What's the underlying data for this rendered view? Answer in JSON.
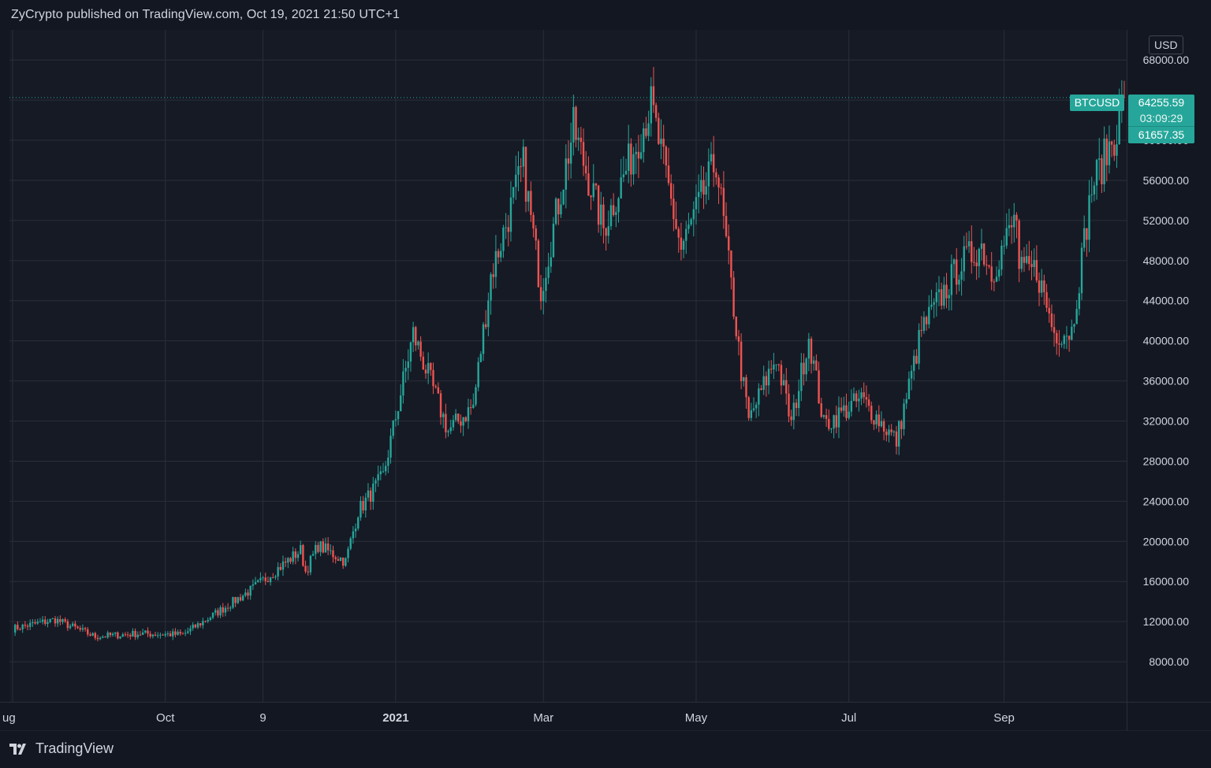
{
  "header": {
    "publisher": "ZyCrypto published on TradingView.com, Oct 19, 2021 21:50 UTC+1"
  },
  "footer": {
    "brand": "TradingView"
  },
  "price_axis": {
    "currency": "USD"
  },
  "tags": {
    "symbol": "BTCUSD",
    "price": "64255.59",
    "countdown": "03:09:29",
    "last": "61657.35"
  },
  "colors": {
    "up": "#26a69a",
    "down": "#ef5350",
    "background": "#131722",
    "grid": "#2a2e39"
  },
  "chart_data": {
    "type": "candlestick",
    "symbol": "BTCUSD",
    "ylim": [
      4000,
      71000
    ],
    "y_ticks": [
      8000,
      12000,
      16000,
      20000,
      24000,
      28000,
      32000,
      36000,
      40000,
      44000,
      48000,
      52000,
      56000,
      60000,
      64000,
      68000
    ],
    "y_tick_labels": [
      "8000.00",
      "12000.00",
      "16000.00",
      "20000.00",
      "24000.00",
      "28000.00",
      "32000.00",
      "36000.00",
      "40000.00",
      "44000.00",
      "48000.00",
      "52000.00",
      "56000.00",
      "60000.00",
      "64000.00",
      "68000.00"
    ],
    "x_range": [
      "2020-08-01",
      "2021-10-19"
    ],
    "x_ticks": [
      {
        "date": "2020-08-01",
        "label": "ug"
      },
      {
        "date": "2020-10-01",
        "label": "Oct"
      },
      {
        "date": "2020-11-09",
        "label": "9"
      },
      {
        "date": "2021-01-01",
        "label": "2021"
      },
      {
        "date": "2021-03-01",
        "label": "Mar"
      },
      {
        "date": "2021-05-01",
        "label": "May"
      },
      {
        "date": "2021-07-01",
        "label": "Jul"
      },
      {
        "date": "2021-09-01",
        "label": "Sep"
      }
    ],
    "close_keypoints": [
      [
        "2020-08-01",
        11300
      ],
      [
        "2020-08-18",
        12200
      ],
      [
        "2020-09-03",
        10500
      ],
      [
        "2020-09-20",
        10800
      ],
      [
        "2020-10-08",
        10700
      ],
      [
        "2020-10-21",
        12800
      ],
      [
        "2020-11-05",
        15300
      ],
      [
        "2020-11-24",
        19100
      ],
      [
        "2020-11-26",
        17000
      ],
      [
        "2020-12-01",
        19600
      ],
      [
        "2020-12-12",
        18000
      ],
      [
        "2020-12-17",
        23000
      ],
      [
        "2020-12-27",
        26500
      ],
      [
        "2021-01-08",
        40700
      ],
      [
        "2021-01-22",
        31000
      ],
      [
        "2021-02-01",
        33500
      ],
      [
        "2021-02-08",
        46500
      ],
      [
        "2021-02-21",
        57500
      ],
      [
        "2021-02-28",
        45100
      ],
      [
        "2021-03-13",
        61200
      ],
      [
        "2021-03-25",
        51200
      ],
      [
        "2021-04-13",
        63500
      ],
      [
        "2021-04-25",
        49100
      ],
      [
        "2021-05-09",
        58000
      ],
      [
        "2021-05-19",
        37000
      ],
      [
        "2021-05-22",
        32000
      ],
      [
        "2021-06-02",
        38500
      ],
      [
        "2021-06-08",
        31700
      ],
      [
        "2021-06-15",
        40500
      ],
      [
        "2021-06-21",
        31600
      ],
      [
        "2021-07-06",
        34200
      ],
      [
        "2021-07-20",
        30000
      ],
      [
        "2021-07-30",
        41000
      ],
      [
        "2021-08-14",
        47500
      ],
      [
        "2021-08-23",
        49500
      ],
      [
        "2021-08-27",
        46800
      ],
      [
        "2021-09-06",
        52400
      ],
      [
        "2021-09-07",
        46800
      ],
      [
        "2021-09-14",
        47100
      ],
      [
        "2021-09-21",
        40800
      ],
      [
        "2021-09-28",
        41000
      ],
      [
        "2021-10-06",
        55300
      ],
      [
        "2021-10-16",
        61000
      ],
      [
        "2021-10-19",
        64255.59
      ]
    ],
    "last_price": 64255.59,
    "previous_close": 61657.35,
    "price_line": 64255.59
  }
}
